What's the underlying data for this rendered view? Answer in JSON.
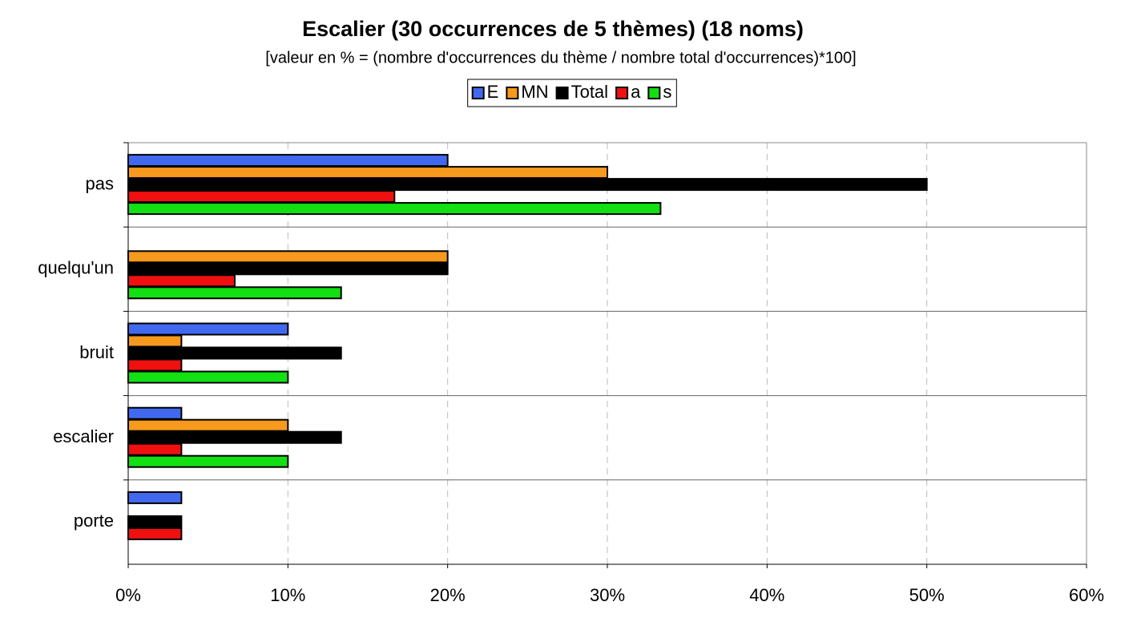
{
  "chart_data": {
    "type": "hbar",
    "title": "Escalier (30 occurrences de 5 thèmes) (18 noms)",
    "subtitle": "[valeur en % = (nombre d'occurrences du thème / nombre total d'occurrences)*100]",
    "categories": [
      "pas",
      "quelqu'un",
      "bruit",
      "escalier",
      "porte"
    ],
    "series": [
      {
        "name": "E",
        "color": "#4169f0",
        "values": [
          20,
          0,
          10,
          3.33,
          3.33
        ]
      },
      {
        "name": "MN",
        "color": "#f7991c",
        "values": [
          30,
          20,
          3.33,
          10,
          0
        ]
      },
      {
        "name": "Total",
        "color": "#000000",
        "values": [
          50,
          20,
          13.33,
          13.33,
          3.33
        ]
      },
      {
        "name": "a",
        "color": "#f01010",
        "values": [
          16.67,
          6.67,
          3.33,
          3.33,
          3.33
        ]
      },
      {
        "name": "s",
        "color": "#12e012",
        "values": [
          33.33,
          13.33,
          10,
          10,
          0
        ]
      }
    ],
    "xlim": [
      0,
      60
    ],
    "xticks": [
      {
        "value": 0,
        "label": "0%"
      },
      {
        "value": 10,
        "label": "10%"
      },
      {
        "value": 20,
        "label": "20%"
      },
      {
        "value": 30,
        "label": "30%"
      },
      {
        "value": 40,
        "label": "40%"
      },
      {
        "value": 50,
        "label": "50%"
      },
      {
        "value": 60,
        "label": "60%"
      }
    ],
    "grid": true,
    "legend": "top"
  }
}
